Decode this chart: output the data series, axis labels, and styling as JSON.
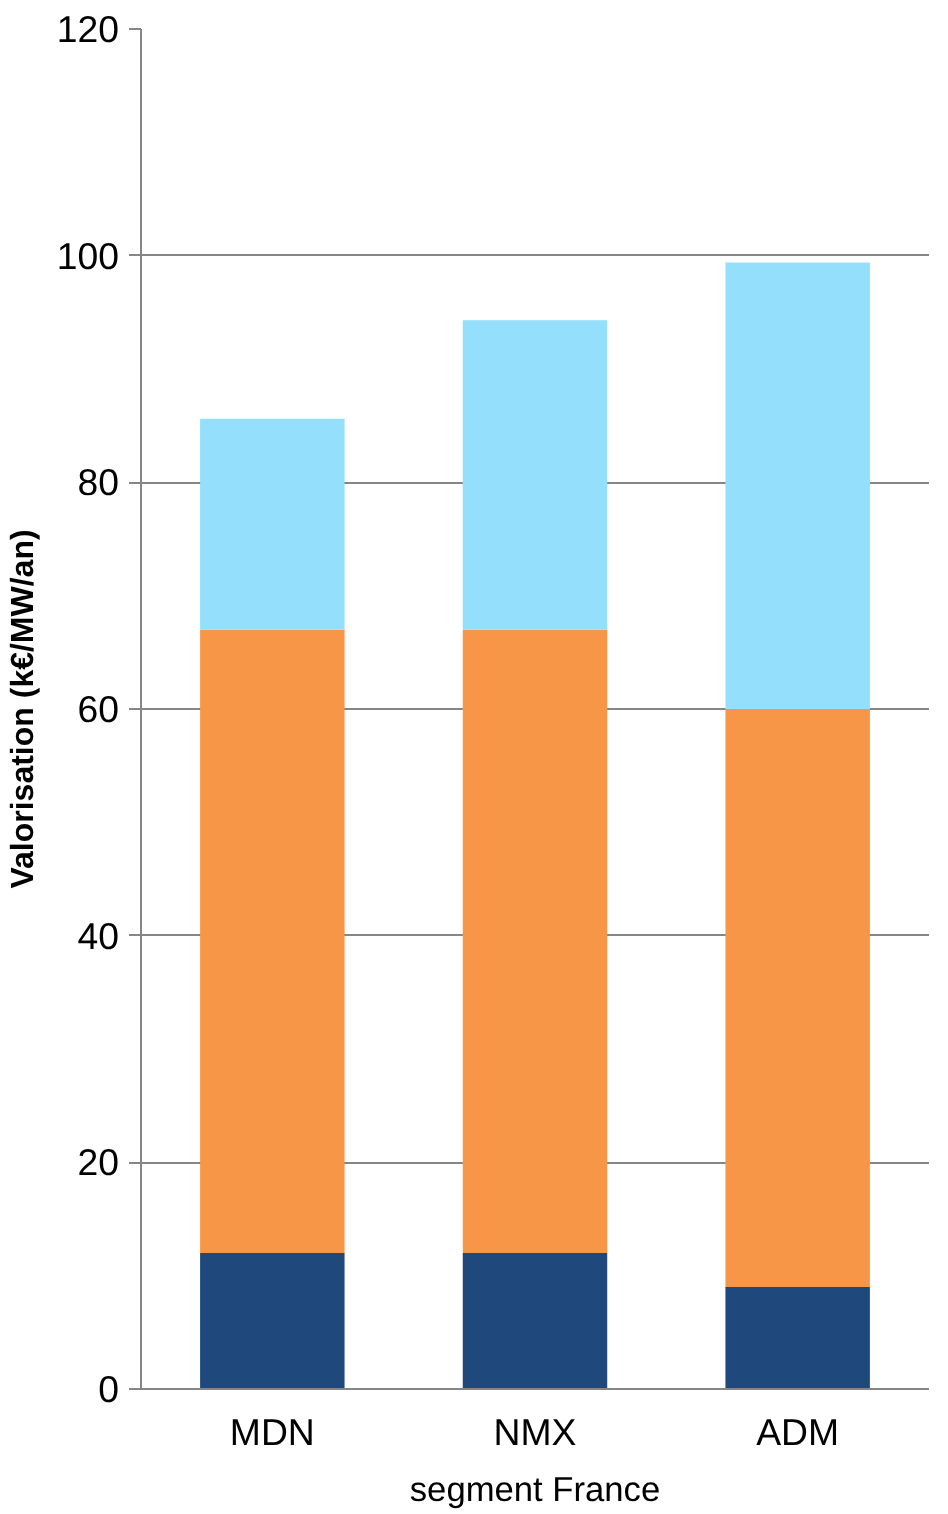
{
  "chart_data": {
    "type": "bar",
    "stacked": true,
    "xlabel": "segment France",
    "ylabel": "Valorisation (k€/MW/an)",
    "categories": [
      "MDN",
      "NMX",
      "ADM"
    ],
    "series": [
      {
        "color": "#1f497d",
        "values": [
          12,
          12,
          9
        ]
      },
      {
        "color": "#f79646",
        "values": [
          55,
          55,
          51
        ]
      },
      {
        "color": "#93dffc",
        "values": [
          18.6,
          27.3,
          39.4
        ]
      }
    ],
    "ylim": [
      0,
      120
    ],
    "yticks": [
      0,
      20,
      40,
      60,
      80,
      100,
      120
    ],
    "grid": "y"
  }
}
